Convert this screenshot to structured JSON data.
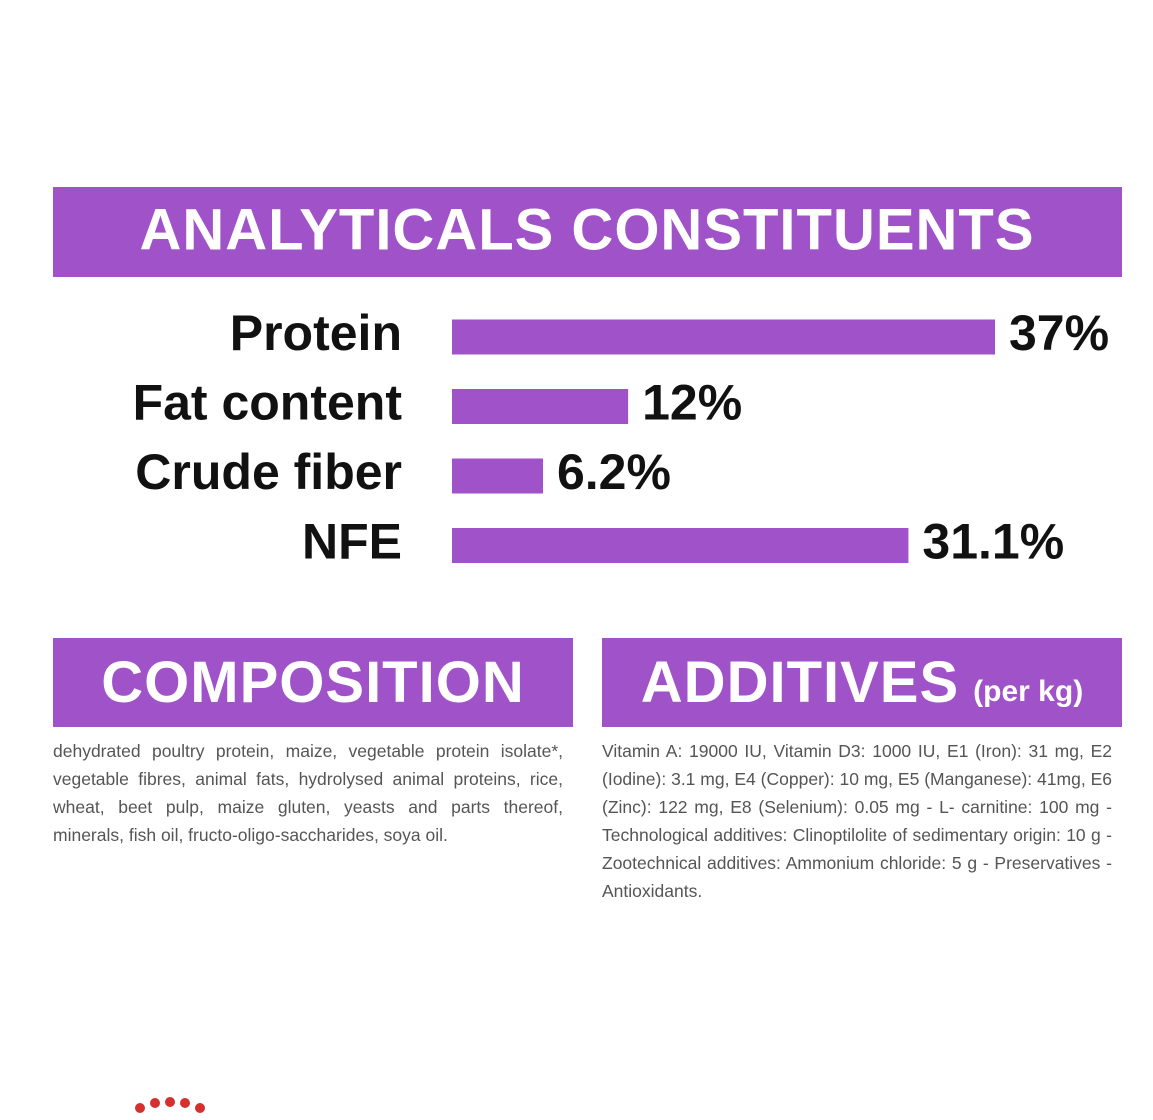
{
  "chart_data": {
    "type": "bar",
    "orientation": "horizontal",
    "title": "ANALYTICALS CONSTITUENTS",
    "categories": [
      "Protein",
      "Fat content",
      "Crude fiber",
      "NFE"
    ],
    "values": [
      37,
      12,
      6.2,
      31.1
    ],
    "value_labels": [
      "37%",
      "12%",
      "6.2%",
      "31.1%"
    ],
    "color": "#a052c9"
  },
  "composition": {
    "title": "COMPOSITION",
    "text": "dehydrated poultry protein, maize, vegetable protein isolate*, vegetable fibres, animal fats, hydrolysed animal proteins, rice, wheat, beet pulp, maize gluten, yeasts and parts thereof, minerals, fish oil, fructo-oligo-saccharides, soya oil."
  },
  "additives": {
    "title": "ADDITIVES",
    "subtitle": "(per kg)",
    "text": "Vitamin A: 19000 IU, Vitamin D3: 1000 IU, E1 (Iron): 31 mg, E2 (Iodine): 3.1 mg, E4 (Copper): 10 mg, E5 (Manganese): 41mg, E6 (Zinc): 122 mg, E8 (Selenium): 0.05 mg - L- carnitine: 100 mg - Technological additives: Clinoptilolite of sedimentary origin: 10 g -Zootechnical additives: Ammonium chloride: 5 g - Preservatives - Antioxidants."
  }
}
